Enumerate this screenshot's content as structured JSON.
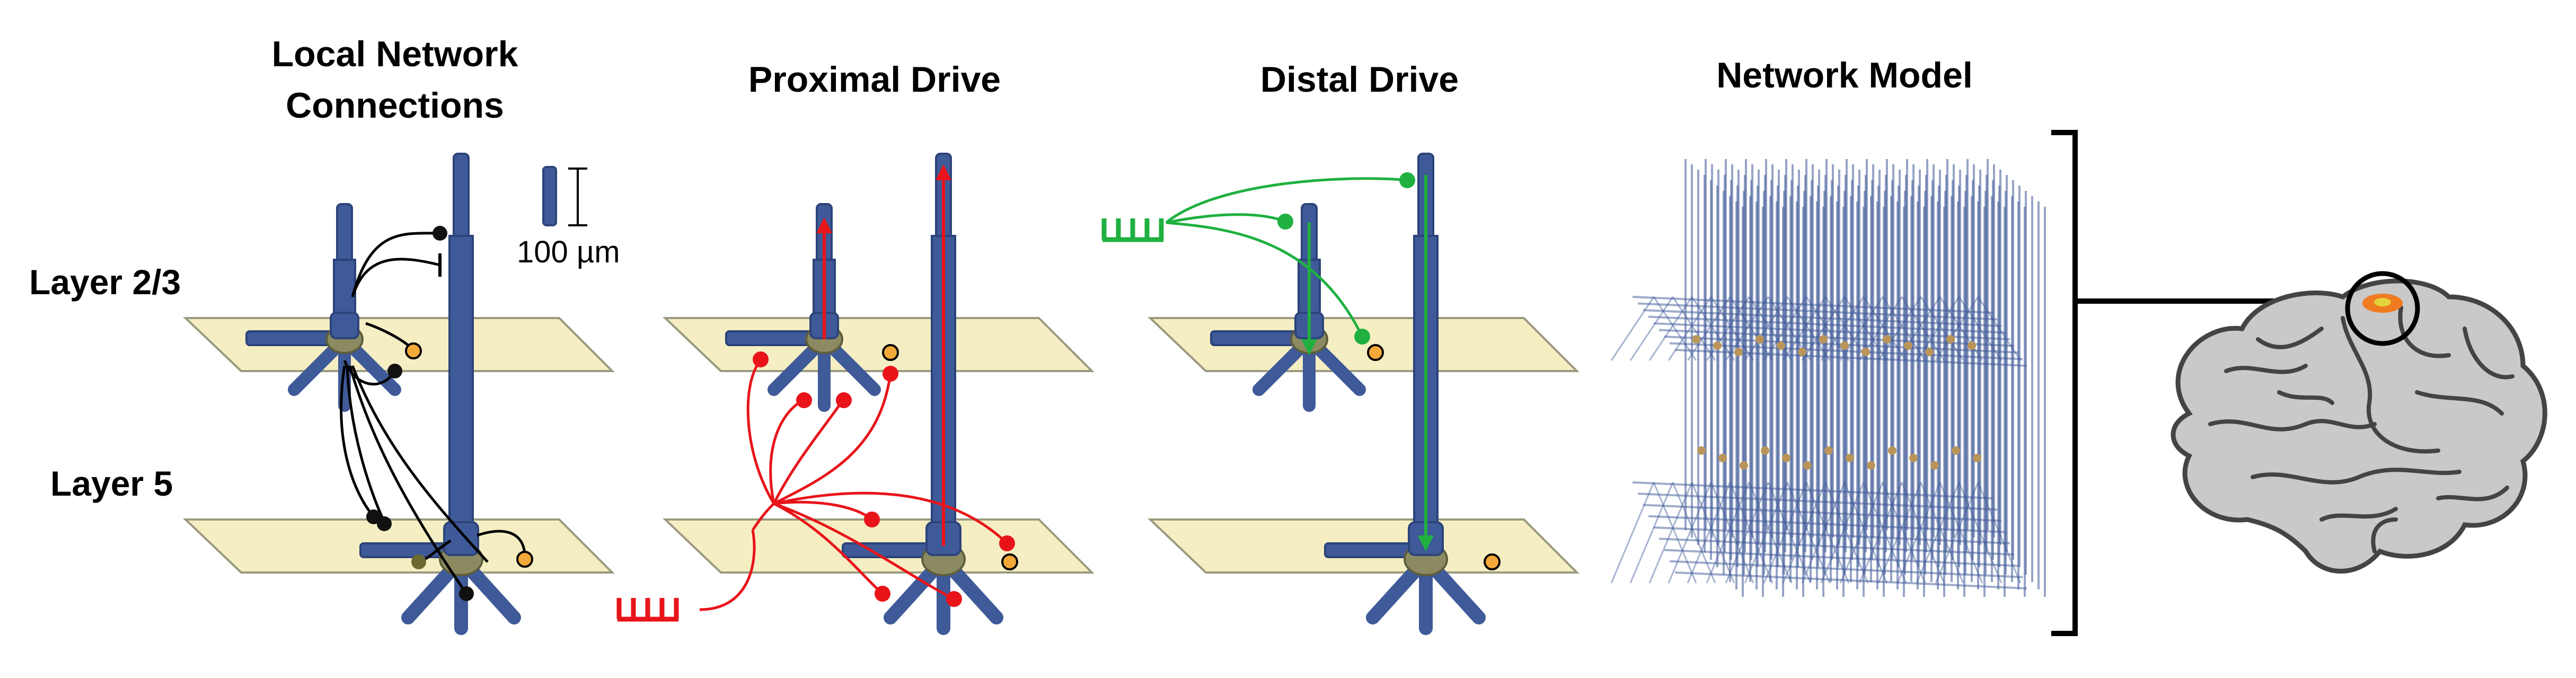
{
  "panels": {
    "local": {
      "title_line1": "Local Network",
      "title_line2": "Connections"
    },
    "proximal": {
      "title": "Proximal Drive"
    },
    "distal": {
      "title": "Distal Drive"
    },
    "model": {
      "title": "Network Model"
    }
  },
  "layers": {
    "l23": "Layer 2/3",
    "l5": "Layer 5"
  },
  "scale_bar": {
    "label": "100 µm"
  },
  "colors": {
    "neuron": "#3f5a98",
    "soma": "#8b8a60",
    "plane": "#f6eec3",
    "plane_stroke": "#9a9a80",
    "proximal": "#e8141a",
    "distal": "#1fb040",
    "inhibitory": "#f3a93a",
    "excitatory": "#111111",
    "brain": "#c9c9c9",
    "hotspot": "#f07a20"
  }
}
